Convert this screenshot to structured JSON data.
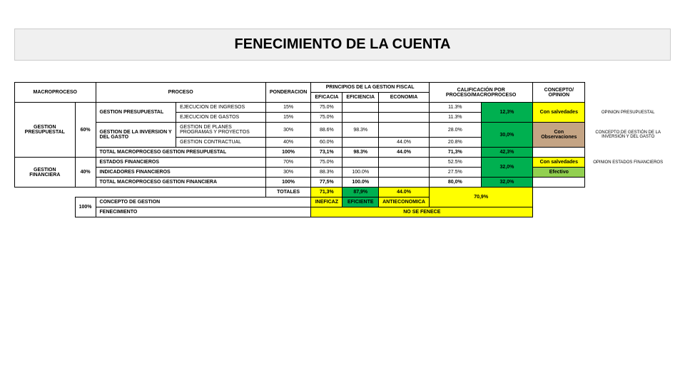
{
  "title": "FENECIMIENTO DE LA CUENTA",
  "headers": {
    "macroproceso": "MACROPROCESO",
    "proceso": "PROCESO",
    "ponderacion": "PONDERACION",
    "principios": "PRINCIPIOS DE LA GESTION FISCAL",
    "eficacia": "EFICACIA",
    "eficiencia": "EFICIENCIA",
    "economia": "ECONOMIA",
    "calificacion": "CALIFICACIÓN POR PROCESO/MACROPROCESO",
    "concepto": "CONCEPTO/ OPINION"
  },
  "rows": {
    "gestion_presupuestal": "GESTION PRESUPUESTAL",
    "gestion_financiera": "GESTION FINANCIERA",
    "gp_sub": "GESTION PRESUPUESTAL",
    "gi_sub": "GESTION DE LA INVERSION Y DEL GASTO",
    "ejec_ingresos": "EJECUCION DE INGRESOS",
    "ejec_gastos": "EJECUCION DE GASTOS",
    "gestion_planes": "GESTION DE PLANES PROGRAMAS Y PROYECTOS",
    "gestion_contractual": "GESTION CONTRACTUAL",
    "total_mp_gp": "TOTAL MACROPROCESO GESTION PRESUPUESTAL",
    "estados_fin": "ESTADOS FINANCIEROS",
    "indicadores": "INDICADORES FINANCIEROS",
    "total_mp_gf": "TOTAL MACROPROCESO GESTION FINANCIERA",
    "totales": "TOTALES",
    "concepto_gestion": "CONCEPTO DE GESTION",
    "fenecimiento": "FENECIMIENTO"
  },
  "values": {
    "pond_60": "60%",
    "pond_40": "40%",
    "pond_100": "100%",
    "p15": "15%",
    "p30": "30%",
    "p40": "40%",
    "p70": "70%",
    "p100": "100%",
    "e750": "75.0%",
    "e886": "88.6%",
    "e600": "60.0%",
    "e731": "73,1%",
    "e883": "88.3%",
    "e775": "77,5%",
    "e713": "71,3%",
    "ef983": "98.3%",
    "ef1000": "100.0%",
    "ef879": "87,9%",
    "ec440": "44.0%",
    "c113": "11.3%",
    "c123": "12,3%",
    "c280": "28.0%",
    "c208": "20.8%",
    "c300": "30,0%",
    "c713": "71,3%",
    "c423": "42,3%",
    "c525": "52.5%",
    "c275": "27.5%",
    "c320": "32,0%",
    "c800": "80,0%",
    "c709": "70,9%",
    "ineficaz": "INEFICAZ",
    "eficiente": "EFICIENTE",
    "antieconomica": "ANTIECONOMICA",
    "nose": "NO SE FENECE",
    "con_salvedades": "Con salvedades",
    "con_obs": "Con Observaciones",
    "efectivo": "Efectivo",
    "opinion_presup": "OPINION PRESUPUESTAL",
    "concepto_gig": "CONCEPTO DE GESTIÓN DE LA INVERSIÓN Y DEL GASTO",
    "opinion_ef": "OPINION ESTADOS FINANCIEROS"
  }
}
